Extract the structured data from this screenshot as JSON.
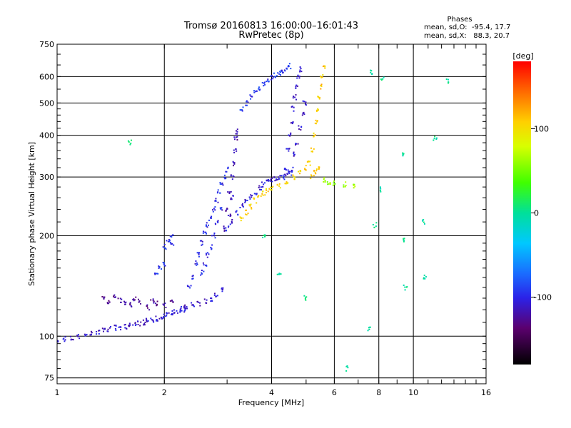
{
  "chart_data": {
    "type": "scatter",
    "title": "Tromsø 20160813 16:00:00–16:01:43",
    "subtitle": "RwPretec (8p)",
    "xlabel": "Frequency [MHz]",
    "ylabel": "Stationary phase Virtual Height [km]",
    "x_scale": "log",
    "y_scale": "log",
    "xlim": [
      1,
      16
    ],
    "ylim": [
      72,
      750
    ],
    "x_ticks": [
      1,
      2,
      4,
      6,
      8,
      10,
      16
    ],
    "x_tick_labels": [
      "1",
      "2",
      "4",
      "6",
      "8",
      "10",
      "16"
    ],
    "y_ticks": [
      75,
      100,
      200,
      300,
      400,
      500,
      600,
      750
    ],
    "y_tick_labels": [
      "75",
      "100",
      "200",
      "300",
      "400",
      "500",
      "600",
      "750"
    ],
    "grid": true,
    "stats": {
      "heading": "Phases",
      "line_o": "mean, sd,O:  -95.4, 17.7",
      "line_x": "mean, sd,X:   88.3, 20.7"
    },
    "colorbar": {
      "label": "[deg]",
      "range": [
        -180,
        180
      ],
      "ticks": [
        100,
        0,
        -100
      ],
      "tick_labels": [
        "100",
        "0",
        "-100"
      ]
    },
    "series": [
      {
        "role": "o-mode low trace",
        "phase": -110,
        "points": [
          [
            1.0,
            97
          ],
          [
            1.05,
            98
          ],
          [
            1.1,
            99
          ],
          [
            1.15,
            100
          ],
          [
            1.2,
            101
          ],
          [
            1.25,
            102
          ],
          [
            1.3,
            103
          ],
          [
            1.35,
            104
          ],
          [
            1.4,
            105
          ],
          [
            1.45,
            106
          ],
          [
            1.5,
            106
          ],
          [
            1.55,
            107
          ],
          [
            1.6,
            108
          ],
          [
            1.65,
            109
          ],
          [
            1.7,
            109
          ],
          [
            1.75,
            110
          ],
          [
            1.8,
            111
          ],
          [
            1.85,
            112
          ],
          [
            1.9,
            113
          ],
          [
            1.95,
            114
          ],
          [
            2.0,
            115
          ],
          [
            2.05,
            116
          ],
          [
            2.1,
            117
          ],
          [
            2.15,
            118
          ],
          [
            2.2,
            119
          ],
          [
            2.25,
            121
          ],
          [
            2.3,
            122
          ],
          [
            2.4,
            124
          ],
          [
            2.5,
            125
          ],
          [
            2.6,
            127
          ],
          [
            2.7,
            129
          ],
          [
            2.8,
            133
          ],
          [
            2.9,
            138
          ]
        ]
      },
      {
        "role": "o-mode upper scatter",
        "phase": -125,
        "points": [
          [
            1.35,
            130
          ],
          [
            1.4,
            126
          ],
          [
            1.45,
            131
          ],
          [
            1.5,
            128
          ],
          [
            1.55,
            125
          ],
          [
            1.6,
            124
          ],
          [
            1.65,
            129
          ],
          [
            1.7,
            127
          ],
          [
            1.8,
            122
          ],
          [
            1.85,
            127
          ],
          [
            1.9,
            125
          ],
          [
            2.0,
            124
          ],
          [
            2.1,
            126
          ]
        ]
      },
      {
        "role": "o-mode jump near 2 MHz",
        "phase": -95,
        "points": [
          [
            1.9,
            155
          ],
          [
            1.95,
            160
          ],
          [
            2.0,
            165
          ],
          [
            2.0,
            185
          ],
          [
            2.05,
            195
          ],
          [
            2.1,
            198
          ],
          [
            2.1,
            190
          ]
        ]
      },
      {
        "role": "o-mode F-layer climb",
        "phase": -100,
        "points": [
          [
            2.3,
            120
          ],
          [
            2.35,
            140
          ],
          [
            2.4,
            150
          ],
          [
            2.45,
            165
          ],
          [
            2.5,
            175
          ],
          [
            2.55,
            190
          ],
          [
            2.6,
            205
          ],
          [
            2.65,
            215
          ],
          [
            2.7,
            225
          ],
          [
            2.75,
            240
          ],
          [
            2.8,
            255
          ],
          [
            2.85,
            270
          ],
          [
            2.9,
            285
          ],
          [
            2.95,
            300
          ],
          [
            3.0,
            315
          ],
          [
            2.9,
            240
          ],
          [
            2.8,
            220
          ],
          [
            2.75,
            200
          ],
          [
            2.7,
            185
          ],
          [
            2.65,
            175
          ],
          [
            2.6,
            165
          ],
          [
            2.55,
            155
          ]
        ]
      },
      {
        "role": "o-mode steep column",
        "phase": -118,
        "points": [
          [
            2.95,
            210
          ],
          [
            3.0,
            240
          ],
          [
            3.05,
            270
          ],
          [
            3.1,
            300
          ],
          [
            3.12,
            330
          ],
          [
            3.15,
            360
          ],
          [
            3.18,
            390
          ],
          [
            3.2,
            410
          ],
          [
            3.1,
            260
          ],
          [
            3.05,
            230
          ]
        ]
      },
      {
        "role": "o-mode F2 trace",
        "phase": -105,
        "points": [
          [
            3.0,
            210
          ],
          [
            3.1,
            220
          ],
          [
            3.2,
            235
          ],
          [
            3.3,
            245
          ],
          [
            3.4,
            255
          ],
          [
            3.5,
            262
          ],
          [
            3.6,
            270
          ],
          [
            3.7,
            278
          ],
          [
            3.8,
            285
          ],
          [
            3.9,
            290
          ],
          [
            4.0,
            293
          ],
          [
            4.1,
            296
          ],
          [
            4.2,
            298
          ],
          [
            4.3,
            300
          ],
          [
            4.4,
            303
          ],
          [
            4.5,
            308
          ],
          [
            4.6,
            315
          ]
        ]
      },
      {
        "role": "o-mode high branch",
        "phase": -95,
        "points": [
          [
            3.3,
            480
          ],
          [
            3.4,
            500
          ],
          [
            3.5,
            520
          ],
          [
            3.6,
            540
          ],
          [
            3.7,
            555
          ],
          [
            3.8,
            570
          ],
          [
            3.9,
            585
          ],
          [
            4.0,
            595
          ],
          [
            4.1,
            605
          ],
          [
            4.2,
            615
          ],
          [
            4.3,
            625
          ],
          [
            4.4,
            635
          ],
          [
            4.5,
            645
          ]
        ]
      },
      {
        "role": "o-mode vertical column",
        "phase": -110,
        "points": [
          [
            4.4,
            320
          ],
          [
            4.45,
            360
          ],
          [
            4.5,
            400
          ],
          [
            4.55,
            440
          ],
          [
            4.6,
            480
          ],
          [
            4.65,
            520
          ],
          [
            4.7,
            560
          ],
          [
            4.75,
            600
          ],
          [
            4.8,
            630
          ],
          [
            4.6,
            350
          ],
          [
            4.7,
            380
          ],
          [
            4.8,
            420
          ],
          [
            4.9,
            460
          ],
          [
            4.95,
            500
          ]
        ]
      },
      {
        "role": "x-mode lower trace",
        "phase": 105,
        "points": [
          [
            3.3,
            225
          ],
          [
            3.4,
            235
          ],
          [
            3.5,
            245
          ],
          [
            3.6,
            255
          ],
          [
            3.7,
            262
          ],
          [
            3.8,
            268
          ],
          [
            3.9,
            272
          ],
          [
            4.0,
            278
          ],
          [
            4.2,
            283
          ],
          [
            4.4,
            290
          ],
          [
            4.6,
            300
          ],
          [
            4.8,
            310
          ],
          [
            5.0,
            320
          ]
        ]
      },
      {
        "role": "x-mode column",
        "phase": 110,
        "points": [
          [
            5.1,
            330
          ],
          [
            5.2,
            360
          ],
          [
            5.3,
            400
          ],
          [
            5.35,
            440
          ],
          [
            5.4,
            480
          ],
          [
            5.45,
            520
          ],
          [
            5.5,
            560
          ],
          [
            5.55,
            600
          ],
          [
            5.6,
            640
          ],
          [
            5.2,
            300
          ],
          [
            5.3,
            310
          ],
          [
            5.4,
            320
          ]
        ]
      },
      {
        "role": "x-mode tail",
        "phase": 60,
        "points": [
          [
            5.6,
            295
          ],
          [
            5.8,
            290
          ],
          [
            6.0,
            288
          ],
          [
            6.4,
            285
          ],
          [
            6.8,
            282
          ]
        ]
      },
      {
        "role": "scattered noise",
        "phase": 0,
        "points": [
          [
            1.6,
            380
          ],
          [
            3.8,
            200
          ],
          [
            4.2,
            155
          ],
          [
            5.0,
            130
          ],
          [
            6.5,
            80
          ],
          [
            7.5,
            105
          ],
          [
            8.1,
            275
          ],
          [
            9.4,
            195
          ],
          [
            9.5,
            140
          ],
          [
            10.7,
            220
          ],
          [
            10.8,
            150
          ],
          [
            11.5,
            390
          ],
          [
            12.5,
            580
          ],
          [
            9.3,
            350
          ],
          [
            8.2,
            590
          ],
          [
            7.8,
            215
          ],
          [
            7.6,
            620
          ]
        ]
      }
    ]
  }
}
